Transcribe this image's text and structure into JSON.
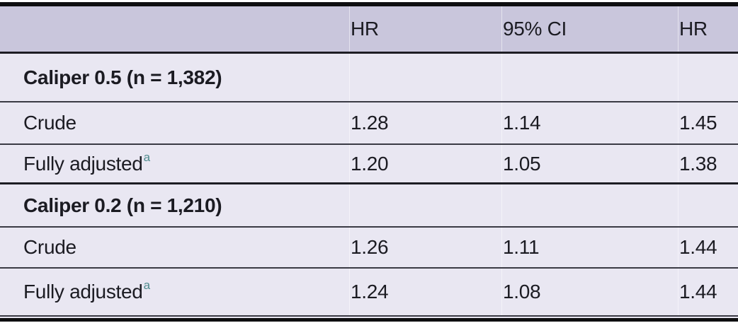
{
  "table": {
    "columns": [
      "",
      "HR",
      "95% CI",
      "HR"
    ],
    "rows": [
      {
        "type": "section",
        "cells": [
          "Caliper 0.5 (n = 1,382)",
          "",
          "",
          ""
        ],
        "superscript": ""
      },
      {
        "type": "data",
        "cells": [
          "Crude",
          "1.28",
          "1.14",
          "1.45"
        ],
        "superscript": ""
      },
      {
        "type": "data",
        "cells": [
          "Fully adjusted",
          "1.20",
          "1.05",
          "1.38"
        ],
        "superscript": "a"
      },
      {
        "type": "section",
        "cells": [
          "Caliper 0.2 (n = 1,210)",
          "",
          "",
          ""
        ],
        "superscript": ""
      },
      {
        "type": "data",
        "cells": [
          "Crude",
          "1.26",
          "1.11",
          "1.44"
        ],
        "superscript": ""
      },
      {
        "type": "data",
        "cells": [
          "Fully adjusted",
          "1.24",
          "1.08",
          "1.44"
        ],
        "superscript": "a"
      }
    ]
  },
  "colors": {
    "header_background": "#c9c6dc",
    "row_background": "#e9e7f2",
    "heavy_rule": "#0e0e10",
    "row_separator": "#3a3a44",
    "text": "#1b1b22",
    "footnote_marker": "#4e8b8d"
  }
}
